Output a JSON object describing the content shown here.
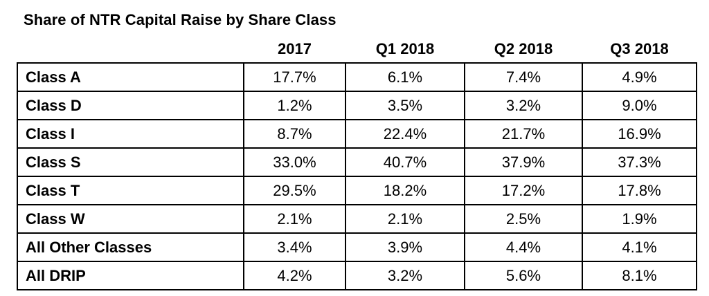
{
  "chart_data": {
    "type": "table",
    "title": "Share of NTR Capital Raise by Share Class",
    "columns": [
      "",
      "2017",
      "Q1 2018",
      "Q2 2018",
      "Q3 2018"
    ],
    "rows": [
      {
        "label": "Class A",
        "values": [
          "17.7%",
          "6.1%",
          "7.4%",
          "4.9%"
        ]
      },
      {
        "label": "Class D",
        "values": [
          "1.2%",
          "3.5%",
          "3.2%",
          "9.0%"
        ]
      },
      {
        "label": "Class I",
        "values": [
          "8.7%",
          "22.4%",
          "21.7%",
          "16.9%"
        ]
      },
      {
        "label": "Class S",
        "values": [
          "33.0%",
          "40.7%",
          "37.9%",
          "37.3%"
        ]
      },
      {
        "label": "Class T",
        "values": [
          "29.5%",
          "18.2%",
          "17.2%",
          "17.8%"
        ]
      },
      {
        "label": "Class W",
        "values": [
          "2.1%",
          "2.1%",
          "2.5%",
          "1.9%"
        ]
      },
      {
        "label": "All Other Classes",
        "values": [
          "3.4%",
          "3.9%",
          "4.4%",
          "4.1%"
        ]
      },
      {
        "label": "All DRIP",
        "values": [
          "4.2%",
          "3.2%",
          "5.6%",
          "8.1%"
        ]
      }
    ]
  }
}
